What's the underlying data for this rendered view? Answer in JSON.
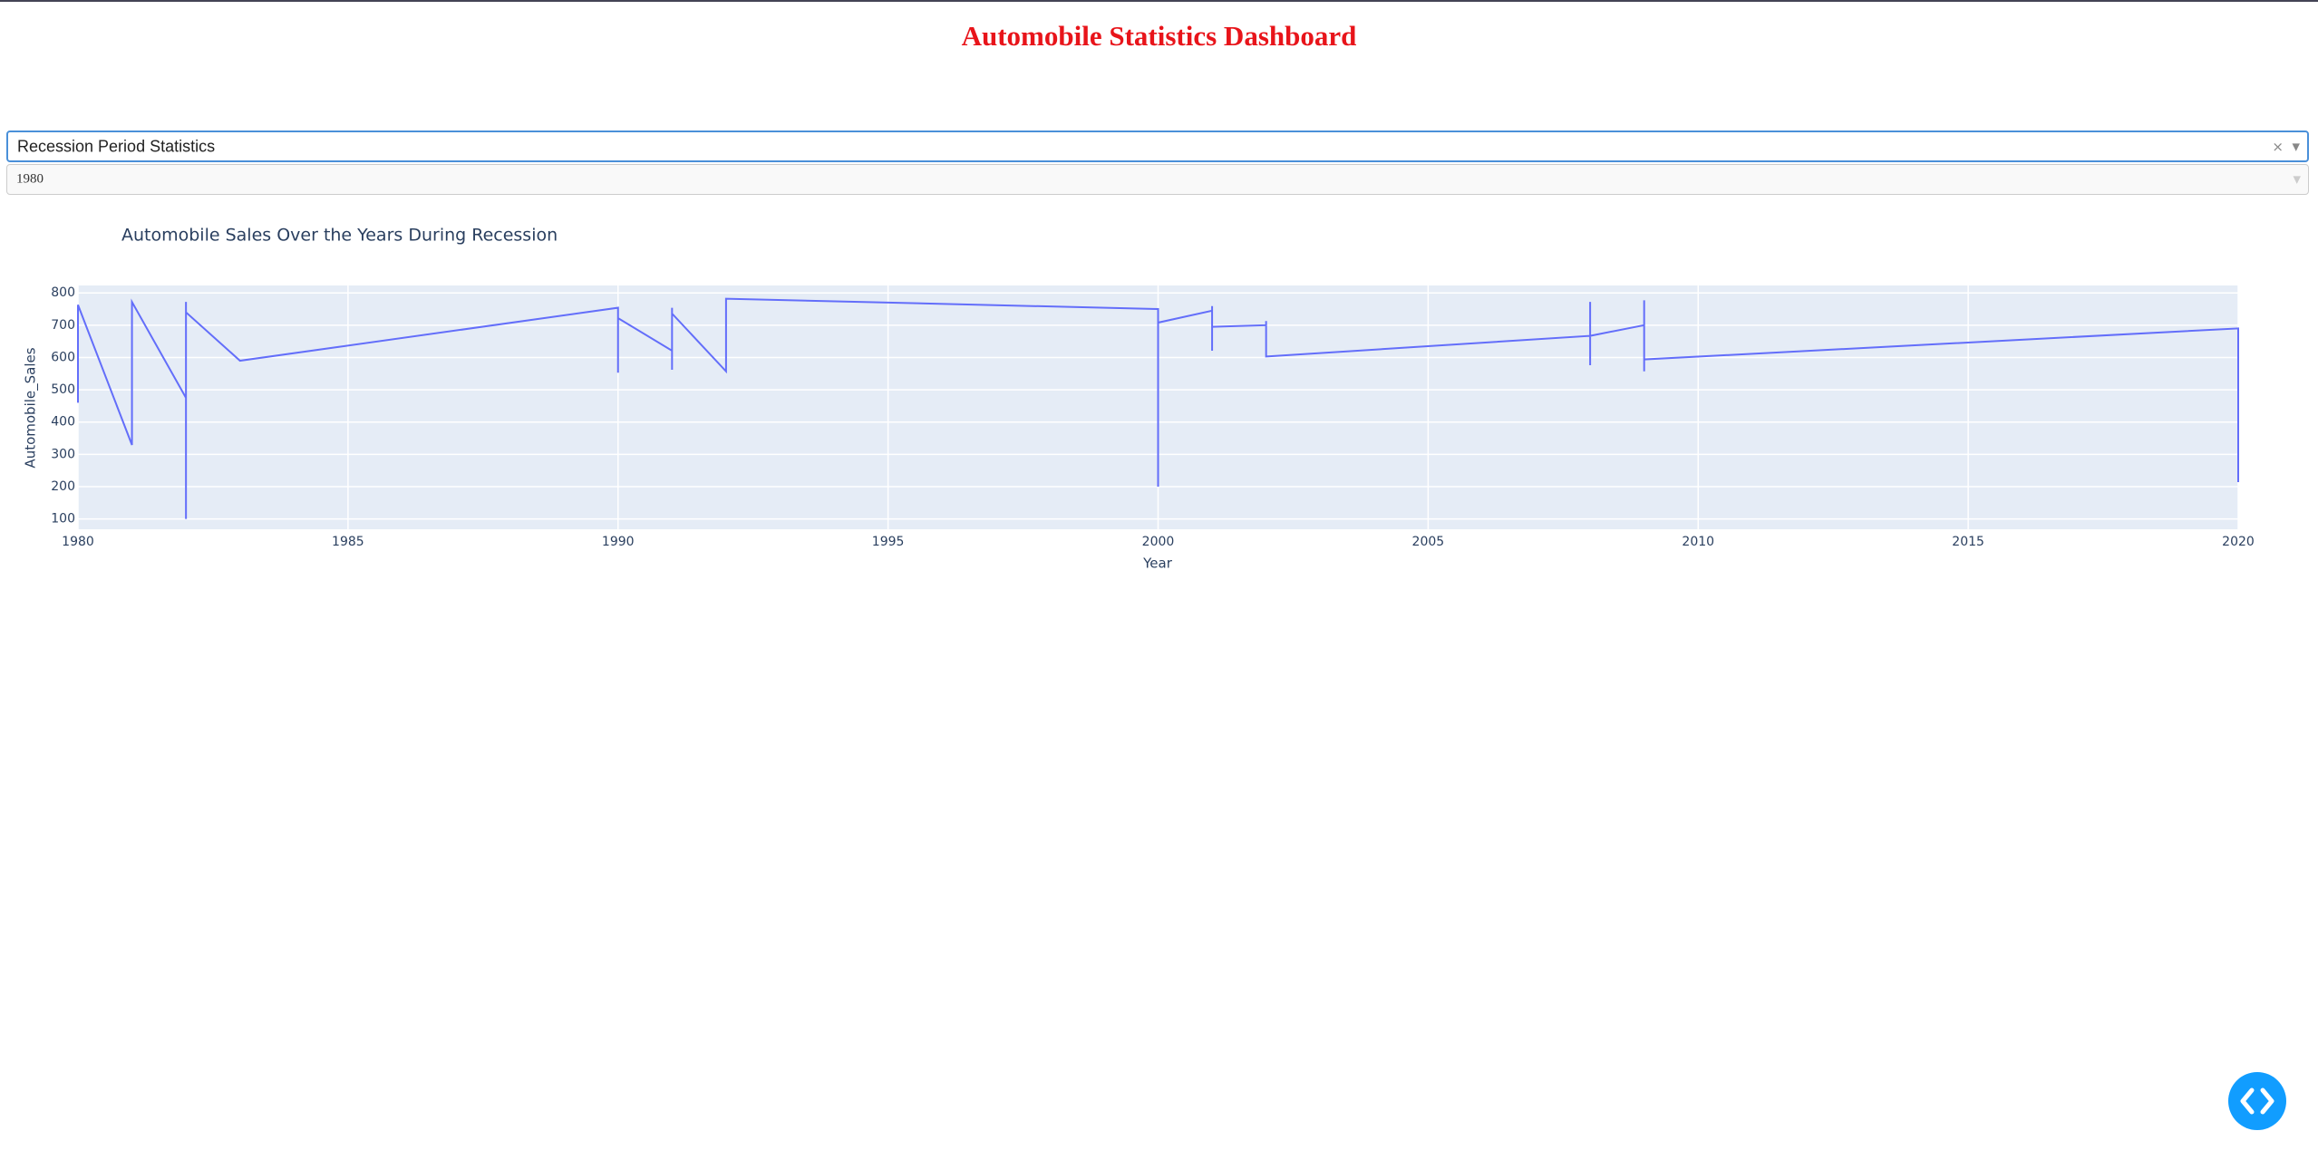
{
  "header": {
    "title": "Automobile Statistics Dashboard"
  },
  "dropdowns": [
    {
      "value": "Recession Period Statistics"
    },
    {
      "value": "1980"
    }
  ],
  "chart_data": {
    "type": "line",
    "title": "Automobile Sales Over the Years During Recession",
    "x_label": "Year",
    "y_label": "Automobile_Sales",
    "x": [
      1980,
      1980,
      1981,
      1981,
      1982,
      1982,
      1982,
      1982,
      1983,
      1990,
      1990,
      1990,
      1991,
      1991,
      1991,
      1991,
      1992,
      1992,
      2000,
      2000,
      2000,
      2001,
      2001,
      2001,
      2001,
      2002,
      2002,
      2002,
      2008,
      2008,
      2008,
      2008,
      2009,
      2009,
      2009,
      2009,
      2020,
      2020
    ],
    "series": [
      {
        "name": "Automobile_Sales",
        "color": "#636efa",
        "values": [
          460,
          763,
          329,
          772,
          475,
          100,
          772,
          740,
          590,
          754,
          553,
          722,
          621,
          754,
          562,
          736,
          557,
          782,
          750,
          200,
          708,
          745,
          759,
          621,
          695,
          700,
          713,
          603,
          667,
          772,
          576,
          667,
          700,
          777,
          557,
          594,
          690,
          214
        ]
      }
    ],
    "xlim": [
      1980,
      2020
    ],
    "xticks": [
      1980,
      1985,
      1990,
      1995,
      2000,
      2005,
      2010,
      2015,
      2020
    ],
    "ylim": [
      68,
      823
    ],
    "yticks": [
      100,
      200,
      300,
      400,
      500,
      600,
      700,
      800
    ],
    "grid": true
  }
}
